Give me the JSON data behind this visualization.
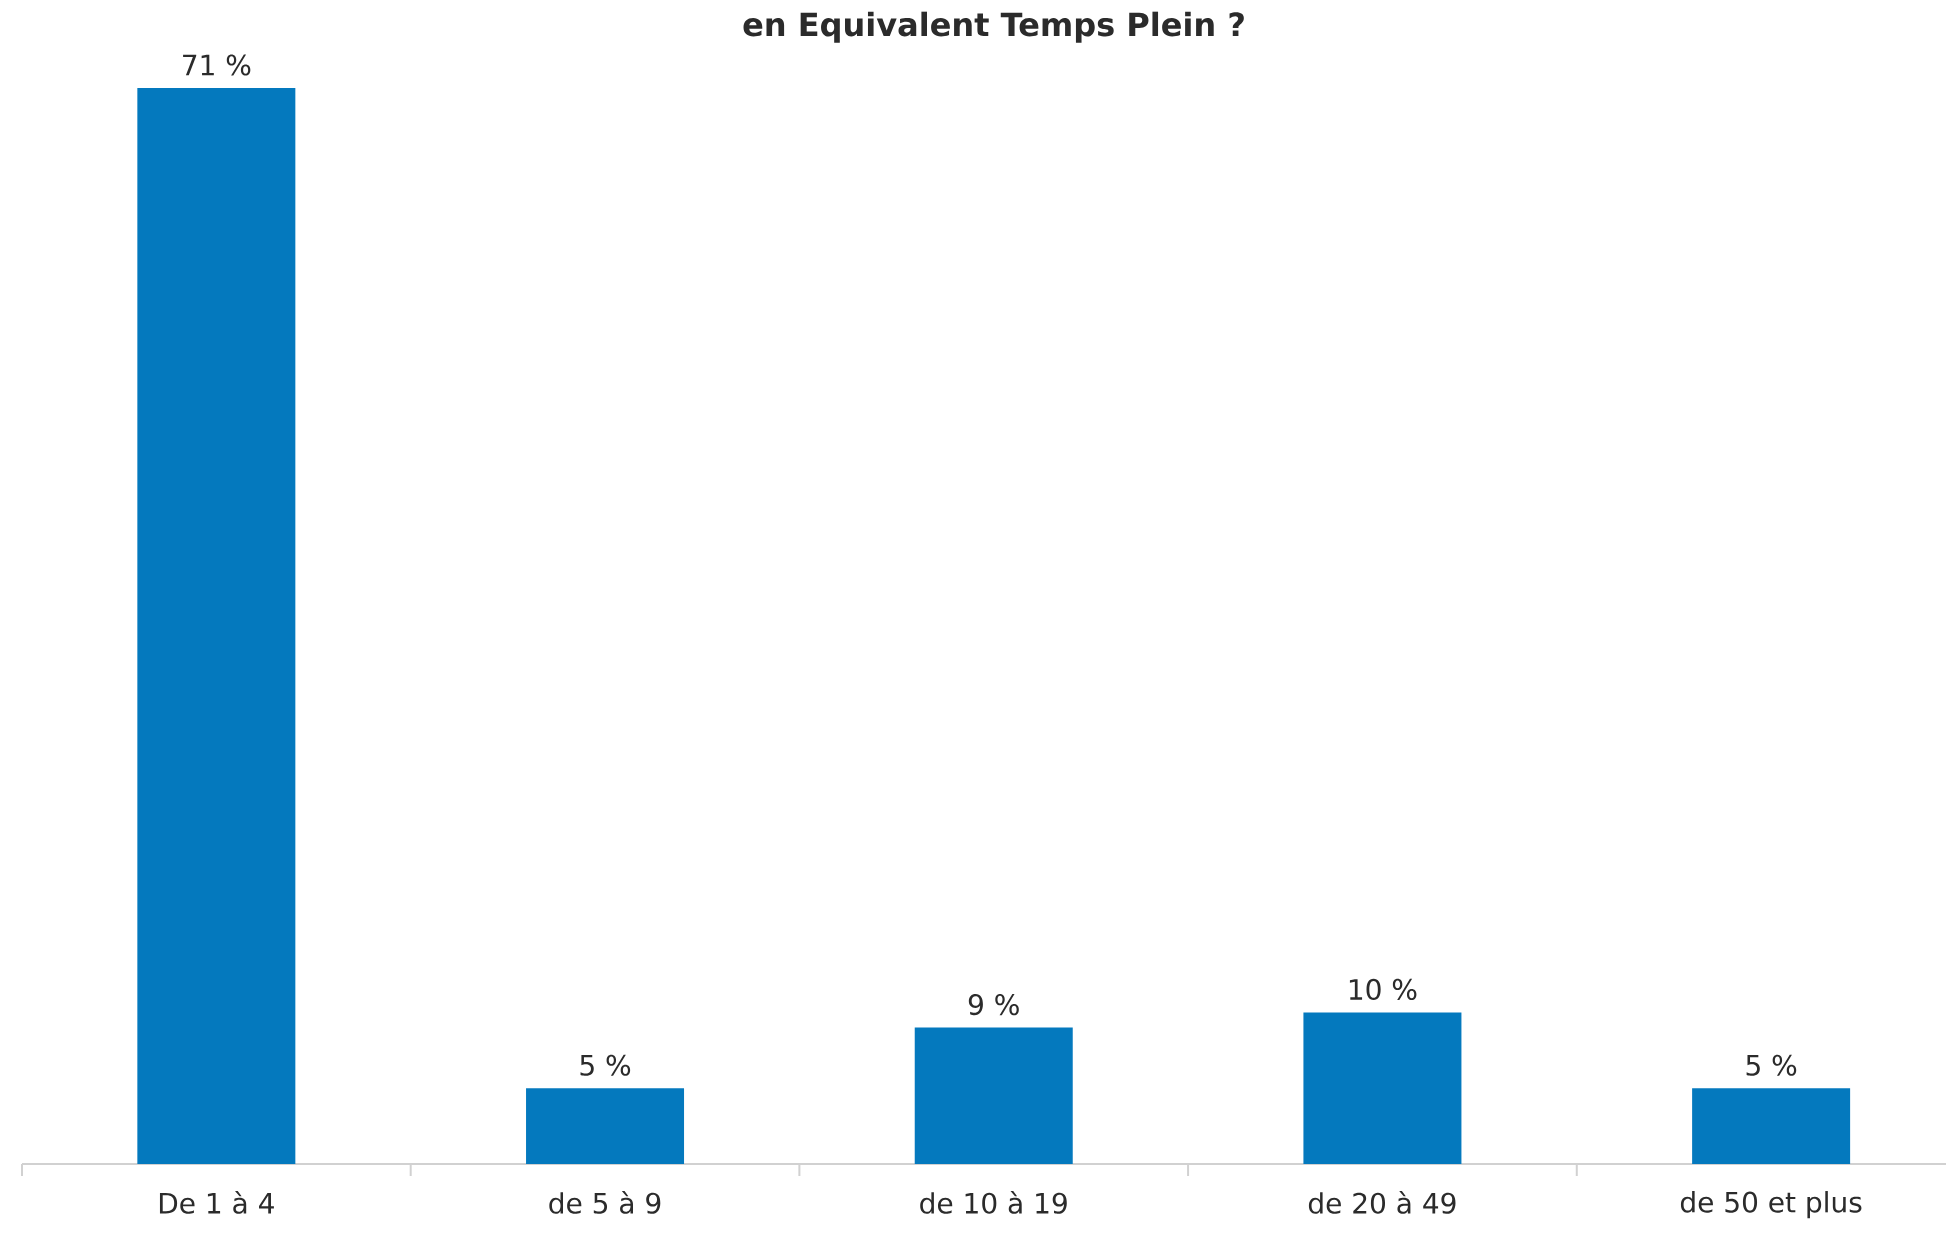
{
  "chart_data": {
    "type": "bar",
    "title": "en Equivalent Temps Plein ?",
    "categories": [
      "De 1 à 4",
      "de 5 à 9",
      "de 10 à 19",
      "de 20 à 49",
      "de 50 et plus"
    ],
    "values": [
      71,
      5,
      9,
      10,
      5
    ],
    "value_labels": [
      "71 %",
      "5 %",
      "9 %",
      "10 %",
      "5 %"
    ],
    "color": "#0479be"
  }
}
